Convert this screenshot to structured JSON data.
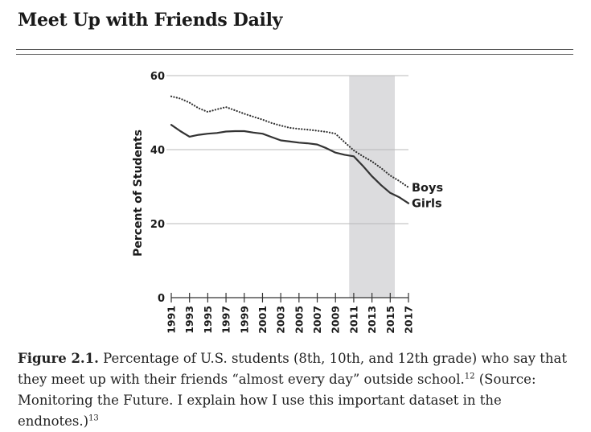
{
  "header": {
    "title": "Meet Up with Friends Daily"
  },
  "chart_data": {
    "type": "line",
    "ylabel": "Percent of Students",
    "ylim": [
      0,
      60
    ],
    "yticks": [
      0,
      20,
      40,
      60
    ],
    "x": [
      1991,
      1992,
      1993,
      1994,
      1995,
      1996,
      1997,
      1998,
      1999,
      2000,
      2001,
      2002,
      2003,
      2004,
      2005,
      2006,
      2007,
      2008,
      2009,
      2010,
      2011,
      2012,
      2013,
      2014,
      2015,
      2016,
      2017
    ],
    "xticks": [
      "1991",
      "1993",
      "1995",
      "1997",
      "1999",
      "2001",
      "2003",
      "2005",
      "2007",
      "2009",
      "2011",
      "2013",
      "2015",
      "2017"
    ],
    "shaded_region": [
      2010.5,
      2015.5
    ],
    "series": [
      {
        "name": "Boys",
        "style": "dotted",
        "color": "#333333",
        "values": [
          54.4,
          53.8,
          52.7,
          51.2,
          50.2,
          50.9,
          51.5,
          50.6,
          49.7,
          48.9,
          48.1,
          47.2,
          46.5,
          45.9,
          45.6,
          45.4,
          45.1,
          44.8,
          44.3,
          42.0,
          39.8,
          38.2,
          36.8,
          35.0,
          33.0,
          31.5,
          29.8
        ]
      },
      {
        "name": "Girls",
        "style": "solid",
        "color": "#333333",
        "values": [
          46.7,
          45.0,
          43.5,
          44.0,
          44.3,
          44.5,
          44.9,
          45.0,
          45.0,
          44.6,
          44.3,
          43.4,
          42.5,
          42.2,
          41.9,
          41.7,
          41.4,
          40.4,
          39.2,
          38.6,
          38.2,
          35.6,
          32.8,
          30.4,
          28.3,
          27.1,
          25.5
        ]
      }
    ]
  },
  "caption": {
    "label": "Figure 2.1.",
    "text_a": " Percentage of U.S. students (8th, 10th, and 12th grade) who say that they meet up with their friends “almost every day” outside school.",
    "note_a": "12",
    "text_b": " (Source: Monitoring the Future. I explain how I use this important dataset in the endnotes.)",
    "note_b": "13"
  }
}
